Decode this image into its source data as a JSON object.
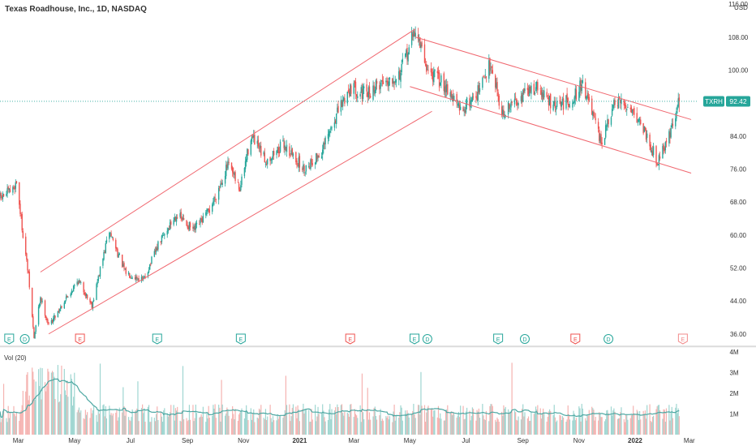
{
  "header": {
    "symbol_title": "Texas Roadhouse, Inc., 1D, NASDAQ",
    "currency": "USD"
  },
  "volume_pane": {
    "label": "Vol (20)",
    "y_ticks": [
      "4M",
      "3M",
      "2M",
      "1M"
    ]
  },
  "price_tag": {
    "ticker": "TXRH",
    "price": "92.42"
  },
  "colors": {
    "up": "#26a69a",
    "down": "#ef5350",
    "trendline": "#f0676f",
    "last_price_line": "#26a69a",
    "volume_ma": "#4ea8a3",
    "axis_text": "#333333",
    "grid_sep": "#c9c9c9"
  },
  "chart_data": {
    "type": "candlestick",
    "title": "Texas Roadhouse, Inc., 1D, NASDAQ",
    "y_axis": {
      "ticks": [
        "116.00",
        "108.00",
        "100.00",
        "92.42",
        "84.00",
        "76.00",
        "68.00",
        "60.00",
        "52.00",
        "44.00",
        "36.00"
      ],
      "ylim": [
        33,
        117
      ],
      "unit": "USD"
    },
    "x_axis": {
      "ticks": [
        "Mar",
        "May",
        "Jul",
        "Sep",
        "Nov",
        "2021",
        "Mar",
        "May",
        "Jul",
        "Sep",
        "Nov",
        "2022",
        "Mar"
      ],
      "range": [
        "2020-02-10",
        "2022-03-10"
      ]
    },
    "last_price": 92.42,
    "price_path": [
      [
        "2020-02-10",
        69
      ],
      [
        "2020-02-24",
        71
      ],
      [
        "2020-02-28",
        73
      ],
      [
        "2020-03-05",
        62
      ],
      [
        "2020-03-12",
        50
      ],
      [
        "2020-03-18",
        35
      ],
      [
        "2020-03-25",
        45
      ],
      [
        "2020-04-03",
        38
      ],
      [
        "2020-04-20",
        44
      ],
      [
        "2020-05-05",
        49
      ],
      [
        "2020-05-20",
        43
      ],
      [
        "2020-06-08",
        61
      ],
      [
        "2020-06-25",
        51
      ],
      [
        "2020-07-15",
        49
      ],
      [
        "2020-08-01",
        58
      ],
      [
        "2020-08-20",
        65
      ],
      [
        "2020-09-08",
        61
      ],
      [
        "2020-09-25",
        66
      ],
      [
        "2020-10-15",
        77
      ],
      [
        "2020-10-28",
        71
      ],
      [
        "2020-11-09",
        84
      ],
      [
        "2020-11-25",
        78
      ],
      [
        "2020-12-15",
        82
      ],
      [
        "2021-01-05",
        76
      ],
      [
        "2021-01-25",
        80
      ],
      [
        "2021-02-10",
        89
      ],
      [
        "2021-02-25",
        96
      ],
      [
        "2021-03-15",
        94
      ],
      [
        "2021-03-30",
        97
      ],
      [
        "2021-04-20",
        99
      ],
      [
        "2021-05-07",
        110
      ],
      [
        "2021-05-20",
        100
      ],
      [
        "2021-06-10",
        96
      ],
      [
        "2021-06-25",
        90
      ],
      [
        "2021-07-15",
        95
      ],
      [
        "2021-07-28",
        102
      ],
      [
        "2021-08-10",
        89
      ],
      [
        "2021-08-25",
        93
      ],
      [
        "2021-09-15",
        96
      ],
      [
        "2021-10-05",
        91
      ],
      [
        "2021-10-25",
        93
      ],
      [
        "2021-11-05",
        97
      ],
      [
        "2021-11-25",
        82
      ],
      [
        "2021-12-10",
        92
      ],
      [
        "2021-12-28",
        91
      ],
      [
        "2022-01-10",
        86
      ],
      [
        "2022-01-25",
        78
      ],
      [
        "2022-02-07",
        84
      ],
      [
        "2022-02-18",
        92.42
      ]
    ],
    "volume": {
      "unit": "M",
      "ylim": [
        0,
        4.2
      ],
      "ma_length": 20
    },
    "trend_lines": [
      {
        "name": "rising channel upper",
        "points": [
          [
            "2020-03-25",
            51
          ],
          [
            "2021-05-07",
            110
          ]
        ]
      },
      {
        "name": "rising channel lower",
        "points": [
          [
            "2020-04-03",
            36
          ],
          [
            "2021-05-25",
            90
          ]
        ]
      },
      {
        "name": "falling channel upper",
        "points": [
          [
            "2021-05-07",
            108
          ],
          [
            "2022-03-03",
            88
          ]
        ]
      },
      {
        "name": "falling channel lower",
        "points": [
          [
            "2021-05-01",
            96
          ],
          [
            "2022-03-03",
            75
          ]
        ]
      }
    ],
    "event_markers": [
      {
        "label": "E",
        "date": "2020-02-20",
        "kind": "earnings",
        "color": "#26a69a"
      },
      {
        "label": "D",
        "date": "2020-03-08",
        "kind": "dividend",
        "color": "#26a69a"
      },
      {
        "label": "E",
        "date": "2020-05-07",
        "kind": "earnings",
        "color": "#ef5350"
      },
      {
        "label": "E",
        "date": "2020-07-30",
        "kind": "earnings",
        "color": "#26a69a"
      },
      {
        "label": "E",
        "date": "2020-10-29",
        "kind": "earnings",
        "color": "#26a69a"
      },
      {
        "label": "E",
        "date": "2021-02-25",
        "kind": "earnings",
        "color": "#ef5350"
      },
      {
        "label": "E",
        "date": "2021-05-06",
        "kind": "earnings",
        "color": "#26a69a"
      },
      {
        "label": "D",
        "date": "2021-05-20",
        "kind": "dividend",
        "color": "#26a69a"
      },
      {
        "label": "E",
        "date": "2021-08-05",
        "kind": "earnings",
        "color": "#26a69a"
      },
      {
        "label": "D",
        "date": "2021-09-03",
        "kind": "dividend",
        "color": "#26a69a"
      },
      {
        "label": "E",
        "date": "2021-10-28",
        "kind": "earnings",
        "color": "#ef5350"
      },
      {
        "label": "D",
        "date": "2021-12-03",
        "kind": "dividend",
        "color": "#26a69a"
      },
      {
        "label": "E",
        "date": "2022-02-22",
        "kind": "earnings-upcoming",
        "color": "#f28b8b"
      }
    ]
  }
}
